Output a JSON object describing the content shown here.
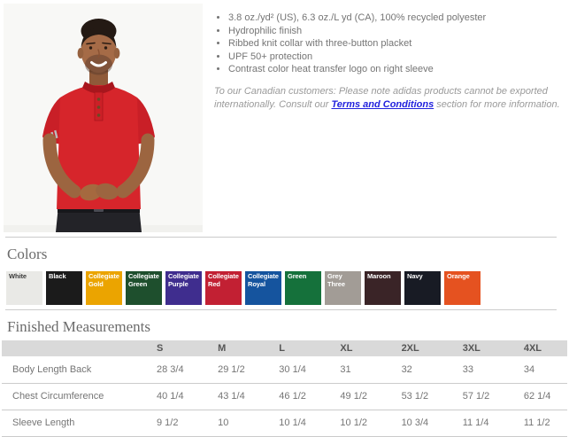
{
  "theme": {
    "link_color": "#2222dd",
    "heading_color": "#6b6b6b",
    "body_text": "#757575",
    "note_text": "#9a9a9a",
    "divider": "#cbcbcb",
    "table_header_bg": "#d9d9d9",
    "table_header_text": "#555555",
    "shirt_red": "#d6252b"
  },
  "product": {
    "photo_alt": "model-wearing-red-polo",
    "bullets": [
      "3.8 oz./yd² (US), 6.3 oz./L yd (CA), 100% recycled polyester",
      "Hydrophilic finish",
      "Ribbed knit collar with three-button placket",
      "UPF 50+ protection",
      "Contrast color heat transfer logo on right sleeve"
    ],
    "note": {
      "pre": "To our Canadian customers: Please note adidas products cannot be exported internationally. Consult our ",
      "link": "Terms and Conditions",
      "post": " section for more information."
    }
  },
  "colors_section": {
    "title": "Colors",
    "swatches": [
      {
        "name": "White",
        "hex": "#e9e9e6",
        "text_color": "#3a3a3a"
      },
      {
        "name": "Black",
        "hex": "#1b1b1b",
        "text_color": "#ffffff"
      },
      {
        "name": "Collegiate Gold",
        "hex": "#eba400",
        "text_color": "#ffffff"
      },
      {
        "name": "Collegiate Green",
        "hex": "#1e4f2d",
        "text_color": "#ffffff"
      },
      {
        "name": "Collegiate Purple",
        "hex": "#3f2d8e",
        "text_color": "#ffffff"
      },
      {
        "name": "Collegiate Red",
        "hex": "#c22033",
        "text_color": "#ffffff"
      },
      {
        "name": "Collegiate Royal",
        "hex": "#15549e",
        "text_color": "#ffffff"
      },
      {
        "name": "Green",
        "hex": "#15713b",
        "text_color": "#ffffff"
      },
      {
        "name": "Grey Three",
        "hex": "#a29c96",
        "text_color": "#ffffff"
      },
      {
        "name": "Maroon",
        "hex": "#3a2427",
        "text_color": "#ffffff"
      },
      {
        "name": "Navy",
        "hex": "#181b24",
        "text_color": "#ffffff"
      },
      {
        "name": "Orange",
        "hex": "#e55220",
        "text_color": "#ffffff"
      }
    ]
  },
  "measurements": {
    "title": "Finished Measurements",
    "columns": [
      "S",
      "M",
      "L",
      "XL",
      "2XL",
      "3XL",
      "4XL"
    ],
    "rows": [
      {
        "label": "Body Length Back",
        "values": [
          "28 3/4",
          "29 1/2",
          "30 1/4",
          "31",
          "32",
          "33",
          "34"
        ]
      },
      {
        "label": "Chest Circumference",
        "values": [
          "40 1/4",
          "43 1/4",
          "46 1/2",
          "49 1/2",
          "53 1/2",
          "57 1/2",
          "62 1/4"
        ]
      },
      {
        "label": "Sleeve Length",
        "values": [
          "9 1/2",
          "10",
          "10 1/4",
          "10 1/2",
          "10 3/4",
          "11 1/4",
          "11 1/2"
        ]
      }
    ]
  }
}
